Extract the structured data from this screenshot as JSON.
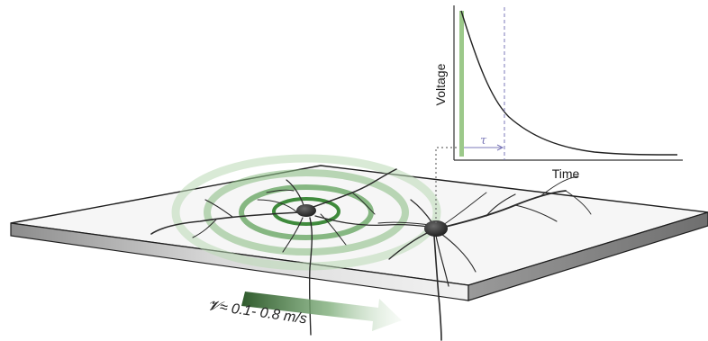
{
  "inset_plot": {
    "y_axis_label": "Voltage",
    "x_axis_label": "Time",
    "time_constant_symbol": "τ",
    "curve": "exponential-decay",
    "stimulus_bar_color": "#9cc98a",
    "curve_color": "#222222",
    "tau_marker_color": "#7b78b8"
  },
  "speed_label": "𝓥≈ 0.1- 0.8 m/s",
  "colors": {
    "wave_ring": "#4f9b4c",
    "arrow_dark": "#2f5a2c",
    "slab_top": "#f5f5f5",
    "slab_edge_dark": "#8c8c8c",
    "slab_edge_light": "#e8e8e8",
    "neuron": "#2a2a2a"
  }
}
